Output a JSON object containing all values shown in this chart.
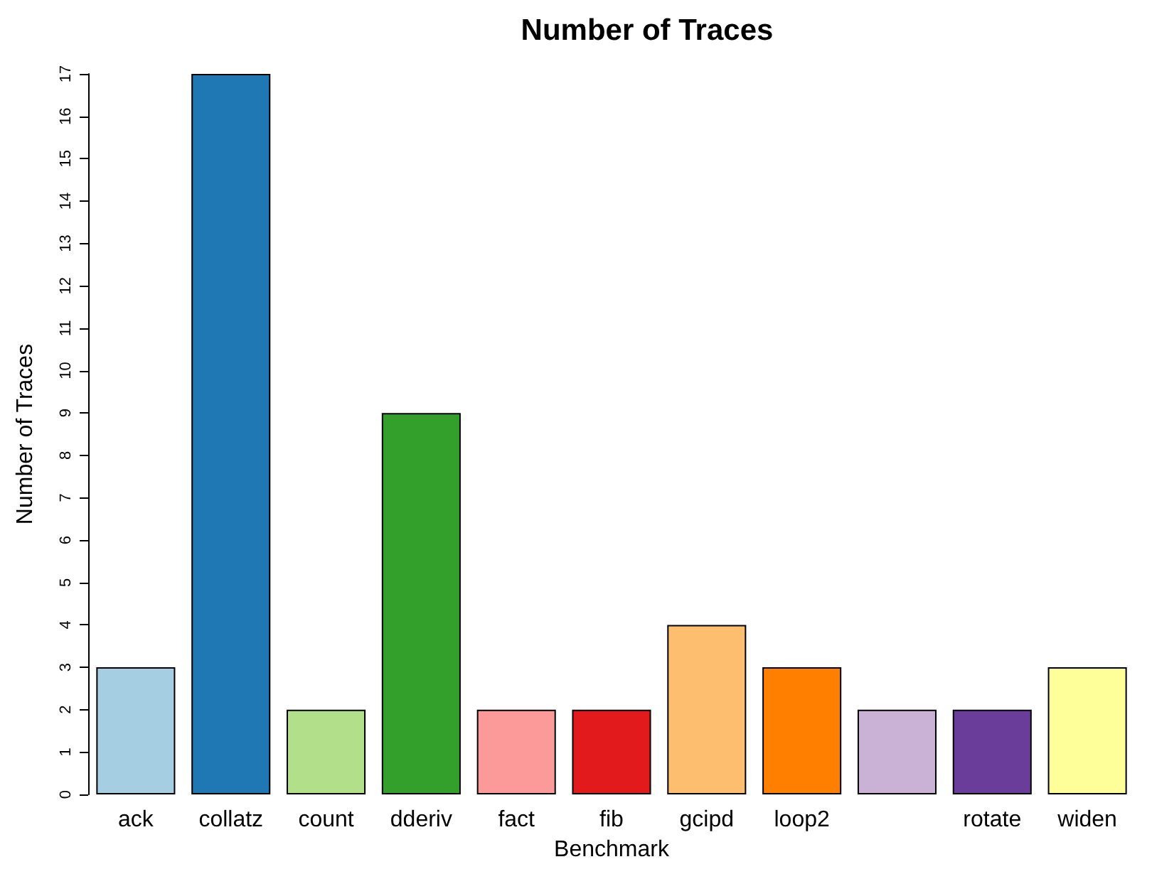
{
  "chart_data": {
    "type": "bar",
    "title": "Number of Traces",
    "xlabel": "Benchmark",
    "ylabel": "Number of Traces",
    "categories": [
      "ack",
      "collatz",
      "count",
      "dderiv",
      "fact",
      "fib",
      "gcipd",
      "loop2",
      null,
      "rotate",
      "widen"
    ],
    "values": [
      3,
      17,
      2,
      9,
      2,
      2,
      4,
      3,
      2,
      2,
      3
    ],
    "colors": [
      "#a6cee3",
      "#1f78b4",
      "#b2df8a",
      "#33a02c",
      "#fb9a99",
      "#e31a1c",
      "#fdbf6f",
      "#ff7f00",
      "#cab2d6",
      "#6a3d9a",
      "#ffff99"
    ],
    "ylim": [
      0,
      17
    ],
    "yticks": [
      0,
      1,
      2,
      3,
      4,
      5,
      6,
      7,
      8,
      9,
      10,
      11,
      12,
      13,
      14,
      15,
      16,
      17
    ],
    "grid": false
  }
}
